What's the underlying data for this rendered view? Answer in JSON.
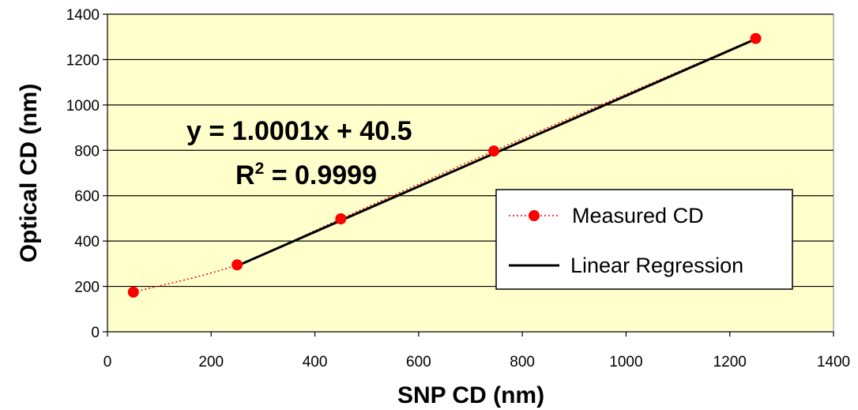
{
  "chart_data": {
    "type": "scatter",
    "xlabel": "SNP CD (nm)",
    "ylabel": "Optical CD (nm)",
    "xlim": [
      0,
      1400
    ],
    "ylim": [
      0,
      1400
    ],
    "x_ticks": [
      0,
      200,
      400,
      600,
      800,
      1000,
      1200,
      1400
    ],
    "y_ticks": [
      0,
      200,
      400,
      600,
      800,
      1000,
      1200,
      1400
    ],
    "grid": "horizontal",
    "plot_background": "#ffffcc",
    "legend_position": "lower-right",
    "series": [
      {
        "name": "Measured CD",
        "style": "dotted line with circle markers",
        "color": "#ff0000",
        "x": [
          50,
          250,
          450,
          745,
          1250
        ],
        "y": [
          175,
          295,
          498,
          797,
          1293
        ]
      },
      {
        "name": "Linear Regression",
        "style": "solid line",
        "color": "#000000",
        "x": [
          250,
          1250
        ],
        "y": [
          290.5,
          1290.6
        ]
      }
    ],
    "annotations": {
      "equation": "y = 1.0001x + 40.5",
      "r2_prefix": "R",
      "r2_superscript": "2",
      "r2_value": " = 0.9999"
    }
  }
}
